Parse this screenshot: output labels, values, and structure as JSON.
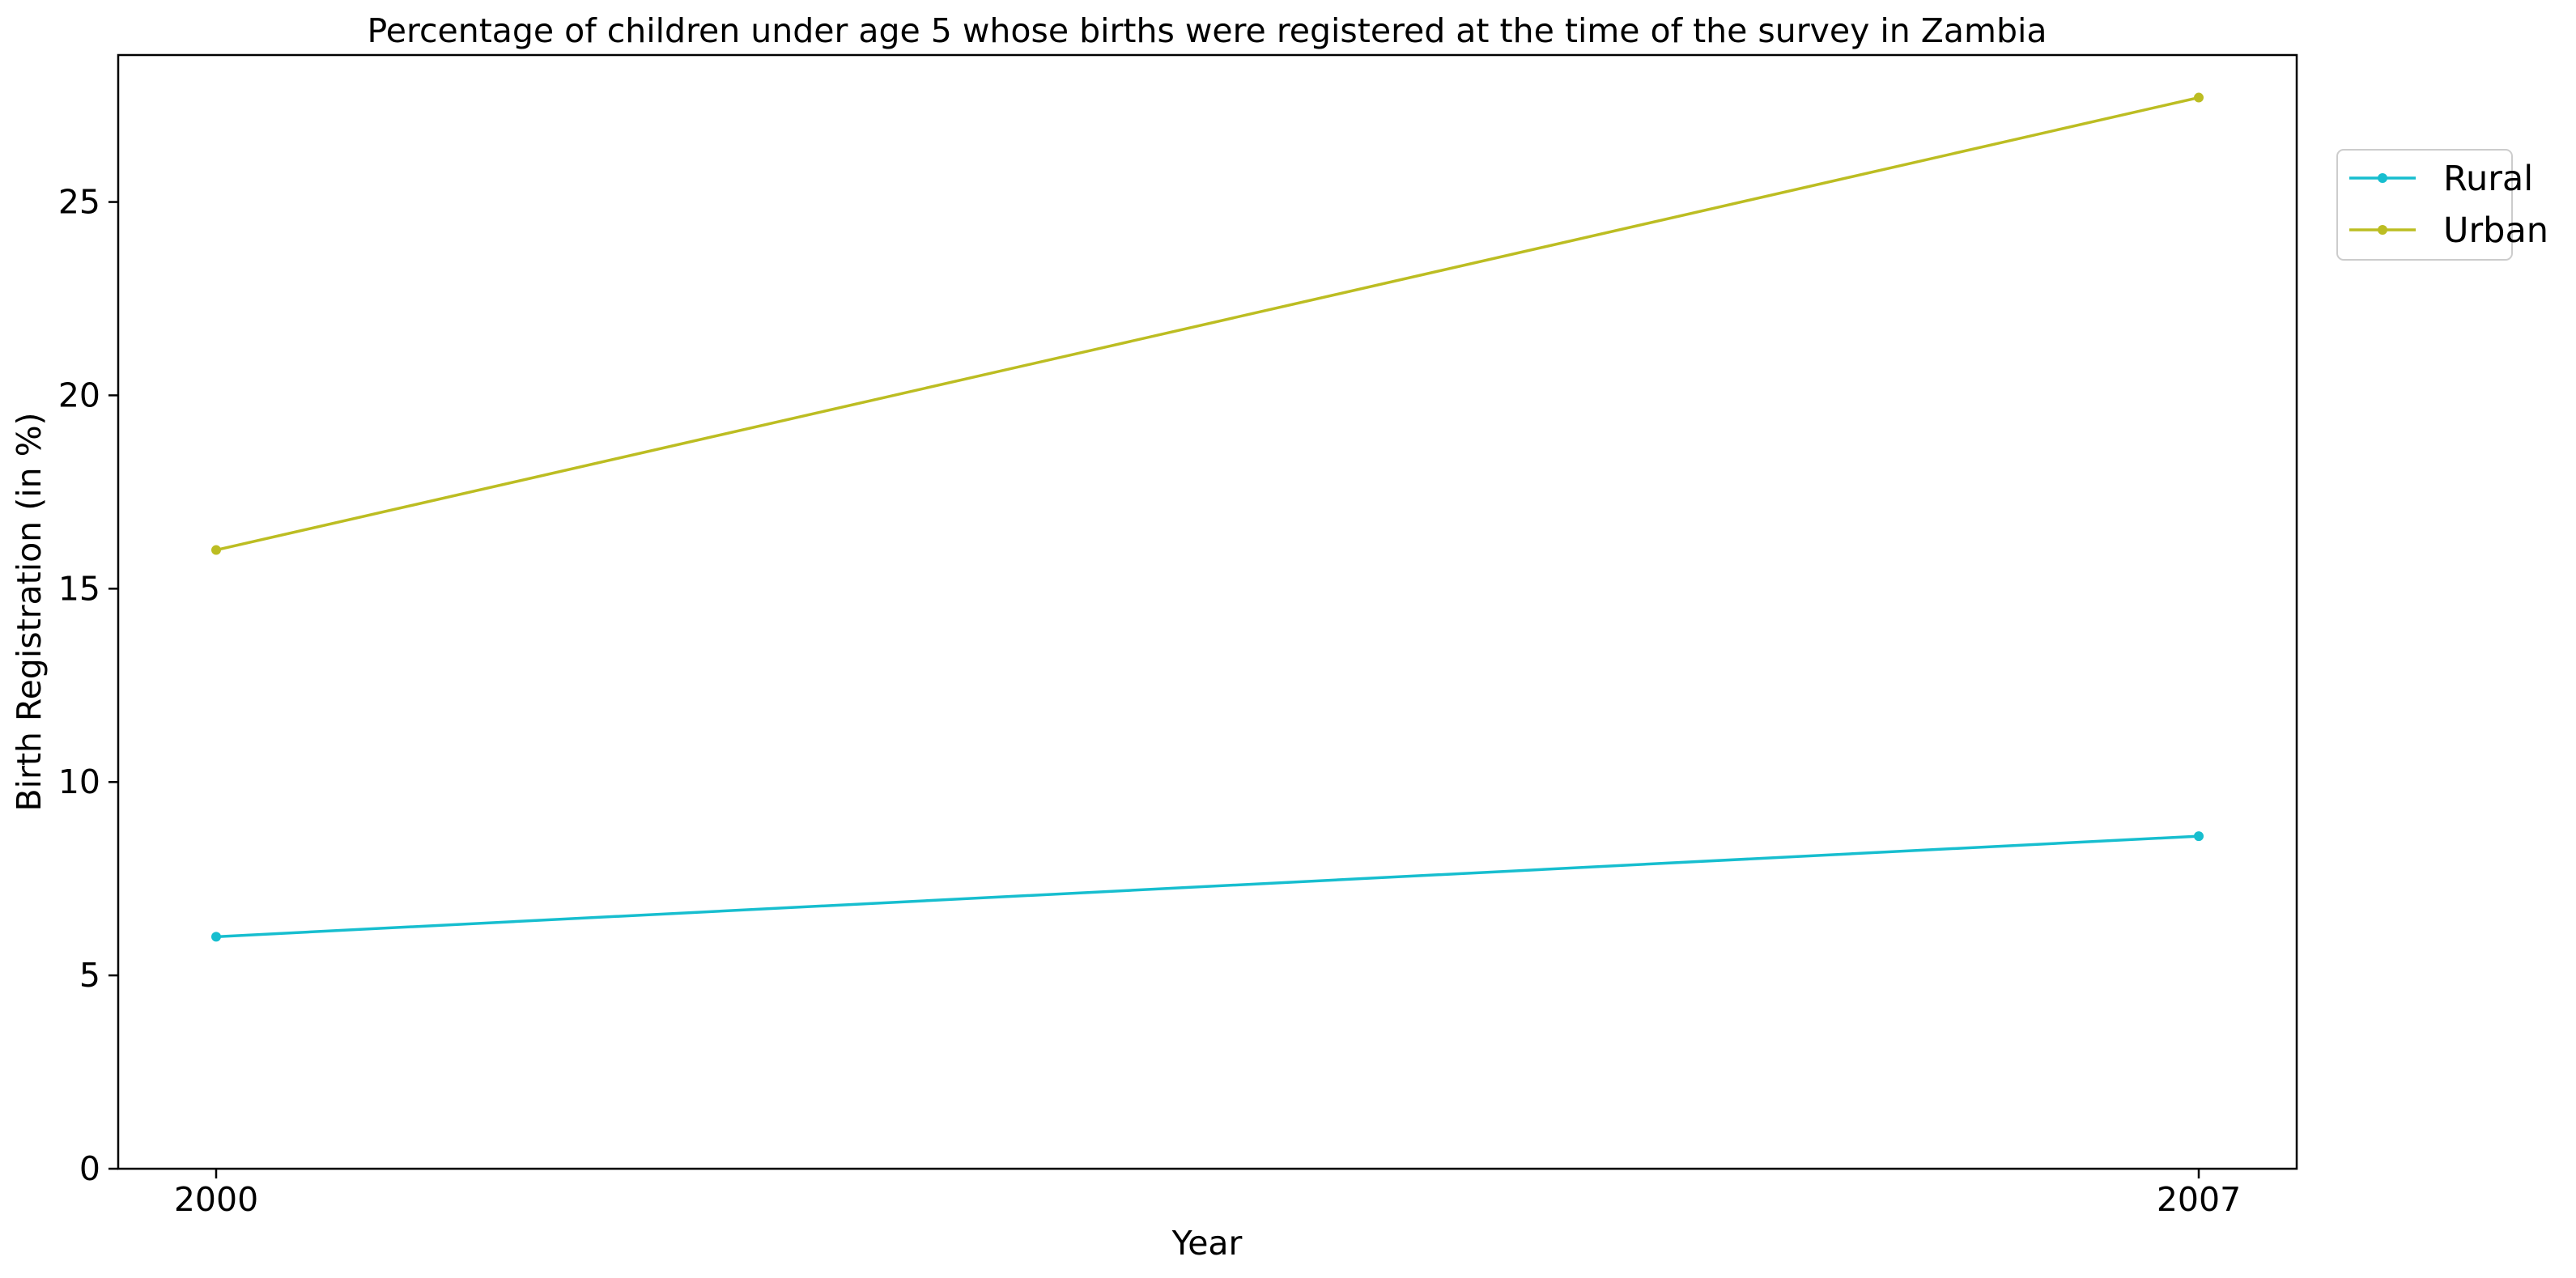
{
  "chart_data": {
    "type": "line",
    "title": "Percentage of children under age 5 whose births were registered at the time of the survey in Zambia",
    "xlabel": "Year",
    "ylabel": "Birth Registration (in %)",
    "x": [
      2000,
      2007
    ],
    "xticks": [
      "2000",
      "2007"
    ],
    "yticks": [
      "0",
      "5",
      "10",
      "15",
      "20",
      "25"
    ],
    "ylim": [
      0,
      28.8
    ],
    "grid": false,
    "legend_position": "top-right-outside",
    "series": [
      {
        "name": "Rural",
        "color": "#17becf",
        "values": [
          6.0,
          8.6
        ]
      },
      {
        "name": "Urban",
        "color": "#bcbd22",
        "values": [
          16.0,
          27.7
        ]
      }
    ]
  }
}
